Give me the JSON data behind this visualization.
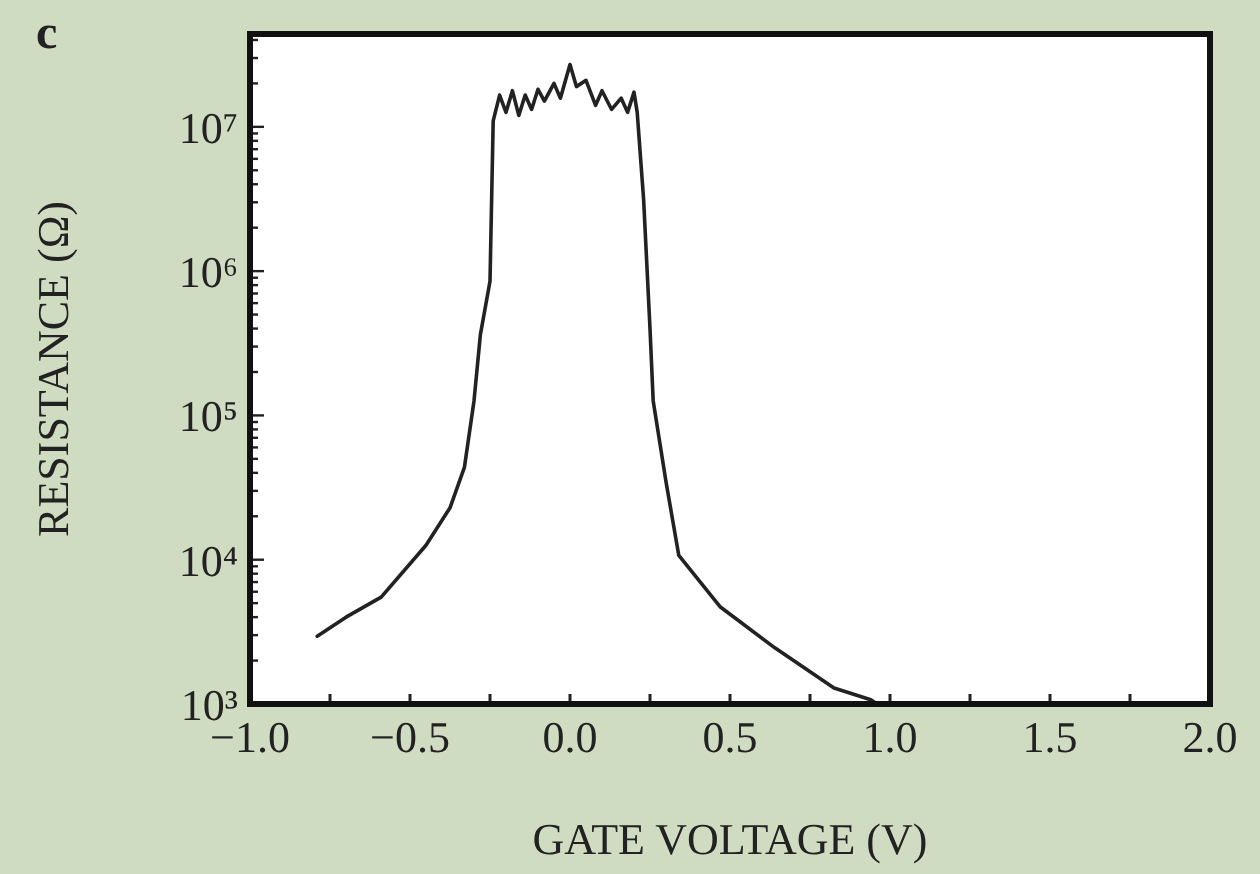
{
  "chart_data": {
    "type": "line",
    "xlabel": "GATE VOLTAGE (V)",
    "ylabel": "RESISTANCE (Ω)",
    "annotations": [
      "c"
    ],
    "log": "y",
    "grid": false,
    "marker": "none",
    "line_style": "solid",
    "xlim": [
      -1.0,
      2.0
    ],
    "ylim": [
      1000,
      44000000
    ],
    "xticks": [
      {
        "value": -1.0,
        "label": "−1.0"
      },
      {
        "value": -0.75,
        "label": null
      },
      {
        "value": -0.5,
        "label": "−0.5"
      },
      {
        "value": -0.25,
        "label": null
      },
      {
        "value": 0.0,
        "label": "0.0"
      },
      {
        "value": 0.25,
        "label": null
      },
      {
        "value": 0.5,
        "label": "0.5"
      },
      {
        "value": 0.75,
        "label": null
      },
      {
        "value": 1.0,
        "label": "1.0"
      },
      {
        "value": 1.25,
        "label": null
      },
      {
        "value": 1.5,
        "label": "1.5"
      },
      {
        "value": 1.75,
        "label": null
      },
      {
        "value": 2.0,
        "label": "2.0"
      }
    ],
    "yticks": [
      {
        "value": 1000,
        "label": "10³"
      },
      {
        "value": 2000,
        "label": null
      },
      {
        "value": 3000,
        "label": null
      },
      {
        "value": 4000,
        "label": null
      },
      {
        "value": 5000,
        "label": null
      },
      {
        "value": 6000,
        "label": null
      },
      {
        "value": 7000,
        "label": null
      },
      {
        "value": 8000,
        "label": null
      },
      {
        "value": 9000,
        "label": null
      },
      {
        "value": 10000,
        "label": "10⁴"
      },
      {
        "value": 20000,
        "label": null
      },
      {
        "value": 30000,
        "label": null
      },
      {
        "value": 40000,
        "label": null
      },
      {
        "value": 50000,
        "label": null
      },
      {
        "value": 60000,
        "label": null
      },
      {
        "value": 70000,
        "label": null
      },
      {
        "value": 80000,
        "label": null
      },
      {
        "value": 90000,
        "label": null
      },
      {
        "value": 100000,
        "label": "10⁵"
      },
      {
        "value": 200000,
        "label": null
      },
      {
        "value": 300000,
        "label": null
      },
      {
        "value": 400000,
        "label": null
      },
      {
        "value": 500000,
        "label": null
      },
      {
        "value": 600000,
        "label": null
      },
      {
        "value": 700000,
        "label": null
      },
      {
        "value": 800000,
        "label": null
      },
      {
        "value": 900000,
        "label": null
      },
      {
        "value": 1000000,
        "label": "10⁶"
      },
      {
        "value": 2000000,
        "label": null
      },
      {
        "value": 3000000,
        "label": null
      },
      {
        "value": 4000000,
        "label": null
      },
      {
        "value": 5000000,
        "label": null
      },
      {
        "value": 6000000,
        "label": null
      },
      {
        "value": 7000000,
        "label": null
      },
      {
        "value": 8000000,
        "label": null
      },
      {
        "value": 9000000,
        "label": null
      },
      {
        "value": 10000000,
        "label": "10⁷"
      },
      {
        "value": 20000000,
        "label": null
      },
      {
        "value": 30000000,
        "label": null
      },
      {
        "value": 40000000,
        "label": null
      }
    ],
    "series": [
      {
        "color": "#222222",
        "x": [
          -0.79,
          -0.7,
          -0.59,
          -0.45,
          -0.375,
          -0.33,
          -0.3,
          -0.28,
          -0.25,
          -0.24,
          -0.22,
          -0.2,
          -0.18,
          -0.16,
          -0.14,
          -0.12,
          -0.1,
          -0.08,
          -0.05,
          -0.03,
          0.0,
          0.02,
          0.05,
          0.08,
          0.1,
          0.13,
          0.16,
          0.18,
          0.2,
          0.21,
          0.23,
          0.25,
          0.26,
          0.3,
          0.34,
          0.47,
          0.64,
          0.825,
          0.94,
          0.96
        ],
        "values": [
          2950,
          4000,
          5500,
          12600,
          22900,
          43600,
          126000,
          363000,
          851000,
          11000000,
          16600000,
          12600000,
          17800000,
          12000000,
          16600000,
          13200000,
          18200000,
          15100000,
          20000000,
          15800000,
          27000000,
          19000000,
          21000000,
          14100000,
          17800000,
          13200000,
          15800000,
          12600000,
          17400000,
          12600000,
          3160000,
          400000,
          126000,
          34700,
          10700,
          4700,
          2450,
          1290,
          1070,
          1000
        ]
      }
    ]
  }
}
